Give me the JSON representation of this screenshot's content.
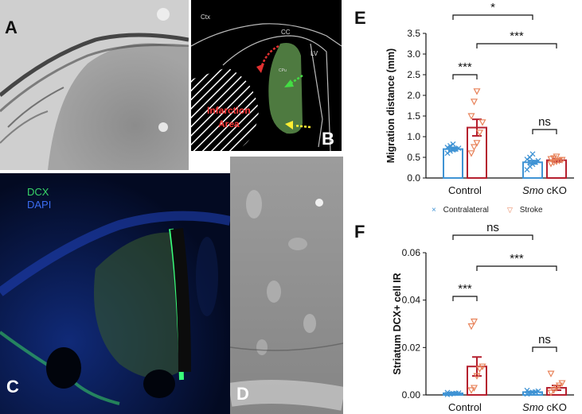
{
  "panels": {
    "A": {
      "label": "A"
    },
    "B": {
      "label": "B",
      "regions": {
        "ctx": "Ctx",
        "cc": "CC",
        "lv": "LV",
        "cpu": "CPu"
      },
      "infarction": [
        "Infarction",
        "Area"
      ]
    },
    "C": {
      "label": "C",
      "stains": [
        "DCX",
        "DAPI"
      ]
    },
    "D": {
      "label": "D"
    },
    "E": {
      "label": "E"
    },
    "F": {
      "label": "F"
    }
  },
  "legend": {
    "items": [
      {
        "name": "Contralateral",
        "marker": "x",
        "color": "#3f93d4"
      },
      {
        "name": "Stroke",
        "marker": "triangle-down",
        "color": "#e8835a"
      }
    ]
  },
  "colors": {
    "contralateral_bar": "#3f93d4",
    "stroke_bar": "#b51f2e",
    "stroke_marker": "#e8835a"
  },
  "chart_data": [
    {
      "panel": "E",
      "type": "bar",
      "ylabel": "Migration distance (mm)",
      "categories": [
        "Control",
        "Smo cKO"
      ],
      "category_italic_prefix": [
        "",
        "Smo"
      ],
      "ylim": [
        0,
        3.5
      ],
      "yticks": [
        "0.0",
        "0.5",
        "1.0",
        "1.5",
        "2.0",
        "2.5",
        "3.0",
        "3.5"
      ],
      "series": [
        {
          "name": "Contralateral",
          "values": [
            0.7,
            0.38
          ],
          "sem": [
            0.04,
            0.04
          ],
          "points": [
            [
              0.6,
              0.65,
              0.68,
              0.7,
              0.72,
              0.74,
              0.78,
              0.82
            ],
            [
              0.2,
              0.28,
              0.33,
              0.38,
              0.42,
              0.45,
              0.5,
              0.58
            ]
          ]
        },
        {
          "name": "Stroke",
          "values": [
            1.22,
            0.43
          ],
          "sem": [
            0.2,
            0.04
          ],
          "points": [
            [
              0.6,
              0.75,
              0.85,
              1.1,
              1.35,
              1.5,
              1.85,
              2.1
            ],
            [
              0.35,
              0.38,
              0.4,
              0.42,
              0.44,
              0.46,
              0.48,
              0.52
            ]
          ]
        }
      ],
      "significance": [
        {
          "label": "***",
          "pair": "Control: Contralateral vs Stroke"
        },
        {
          "label": "ns",
          "pair": "Smo cKO: Contralateral vs Stroke"
        },
        {
          "label": "*",
          "pair": "Contralateral: Control vs Smo cKO"
        },
        {
          "label": "***",
          "pair": "Stroke: Control vs Smo cKO"
        }
      ]
    },
    {
      "panel": "F",
      "type": "bar",
      "ylabel": "Striatum DCX+ cell IR",
      "categories": [
        "Control",
        "Smo cKO"
      ],
      "category_italic_prefix": [
        "",
        "Smo"
      ],
      "ylim": [
        0,
        0.06
      ],
      "yticks": [
        "0.00",
        "0.02",
        "0.04",
        "0.06"
      ],
      "series": [
        {
          "name": "Contralateral",
          "values": [
            0.0007,
            0.0012
          ],
          "sem": [
            0.0003,
            0.0003
          ],
          "points": [
            [
              0.0002,
              0.0004,
              0.0006,
              0.0007,
              0.0008,
              0.001
            ],
            [
              0.0004,
              0.0008,
              0.0011,
              0.0013,
              0.0016,
              0.0019
            ]
          ]
        },
        {
          "name": "Stroke",
          "values": [
            0.012,
            0.003
          ],
          "sem": [
            0.004,
            0.001
          ],
          "points": [
            [
              0.002,
              0.003,
              0.008,
              0.011,
              0.012,
              0.029,
              0.031
            ],
            [
              0.001,
              0.002,
              0.003,
              0.004,
              0.005,
              0.009
            ]
          ]
        }
      ],
      "significance": [
        {
          "label": "***",
          "pair": "Control: Contralateral vs Stroke"
        },
        {
          "label": "ns",
          "pair": "Smo cKO: Contralateral vs Stroke"
        },
        {
          "label": "ns",
          "pair": "Contralateral: Control vs Smo cKO"
        },
        {
          "label": "***",
          "pair": "Stroke: Control vs Smo cKO"
        }
      ]
    }
  ]
}
